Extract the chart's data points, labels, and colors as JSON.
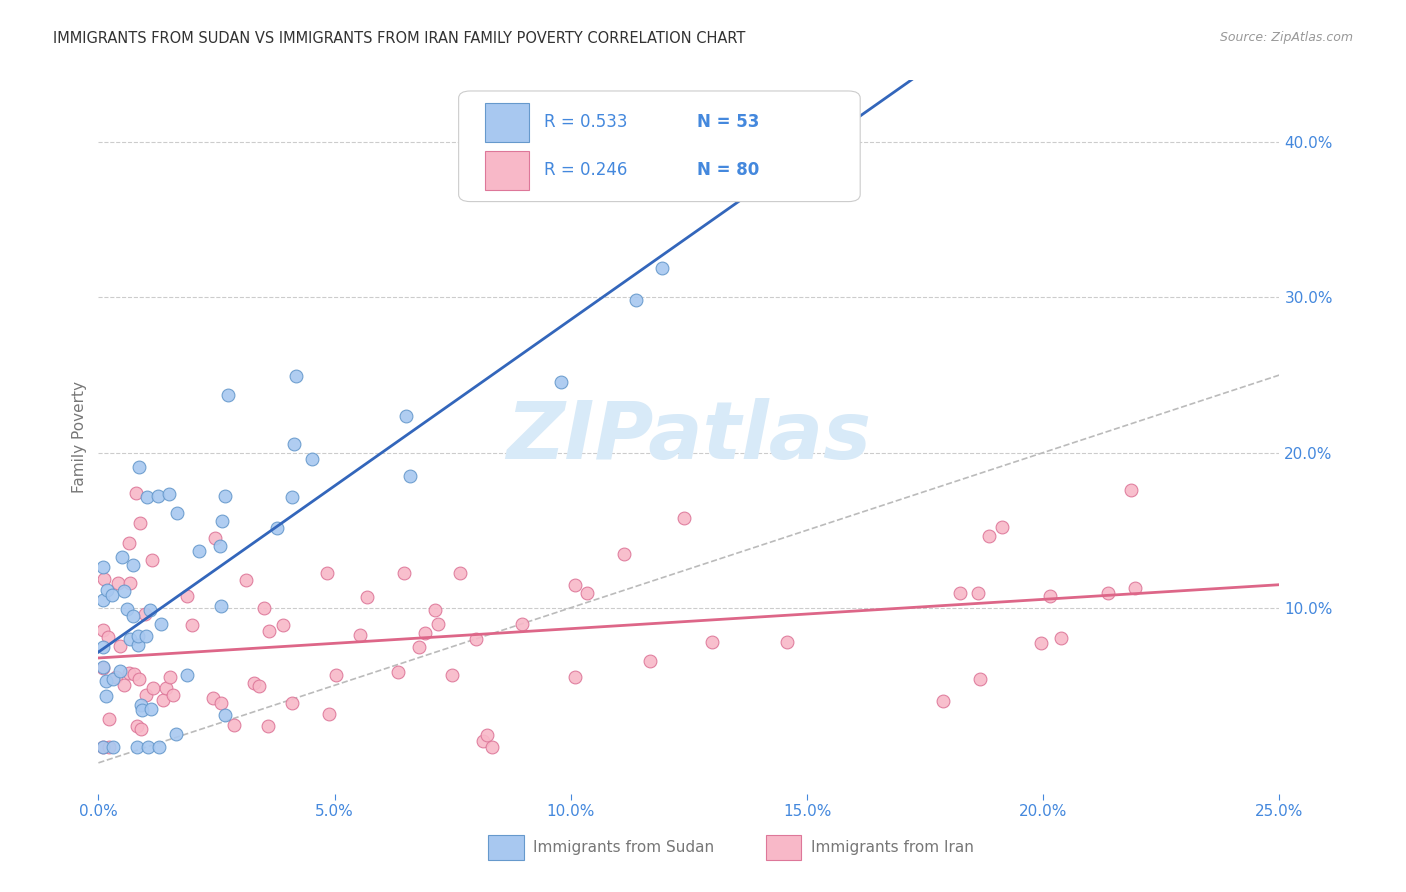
{
  "title": "IMMIGRANTS FROM SUDAN VS IMMIGRANTS FROM IRAN FAMILY POVERTY CORRELATION CHART",
  "source": "Source: ZipAtlas.com",
  "ylabel": "Family Poverty",
  "xlim": [
    0.0,
    0.25
  ],
  "ylim": [
    -0.02,
    0.44
  ],
  "ytick_right_values": [
    0.1,
    0.2,
    0.3,
    0.4
  ],
  "xtick_values": [
    0.0,
    0.05,
    0.1,
    0.15,
    0.2,
    0.25
  ],
  "sudan_color": "#a8c8f0",
  "iran_color": "#f8b8c8",
  "sudan_edge_color": "#6699cc",
  "iran_edge_color": "#dd7799",
  "sudan_line_color": "#3366bb",
  "iran_line_color": "#dd6688",
  "ref_line_color": "#bbbbbb",
  "legend_sudan_label": "Immigrants from Sudan",
  "legend_iran_label": "Immigrants from Iran",
  "r_sudan": 0.533,
  "r_iran": 0.246,
  "n_sudan": 53,
  "n_iran": 80,
  "background_color": "#ffffff",
  "grid_color": "#cccccc",
  "title_color": "#333333",
  "axis_label_color": "#777777",
  "tick_label_color": "#4488dd",
  "watermark_color": "#d8eaf8",
  "watermark_text": "ZIPatlas",
  "marker_size": 85,
  "seed": 12345,
  "sudan_line_intercept": 0.062,
  "sudan_line_slope": 2.1,
  "iran_line_intercept": 0.072,
  "iran_line_slope": 0.115
}
